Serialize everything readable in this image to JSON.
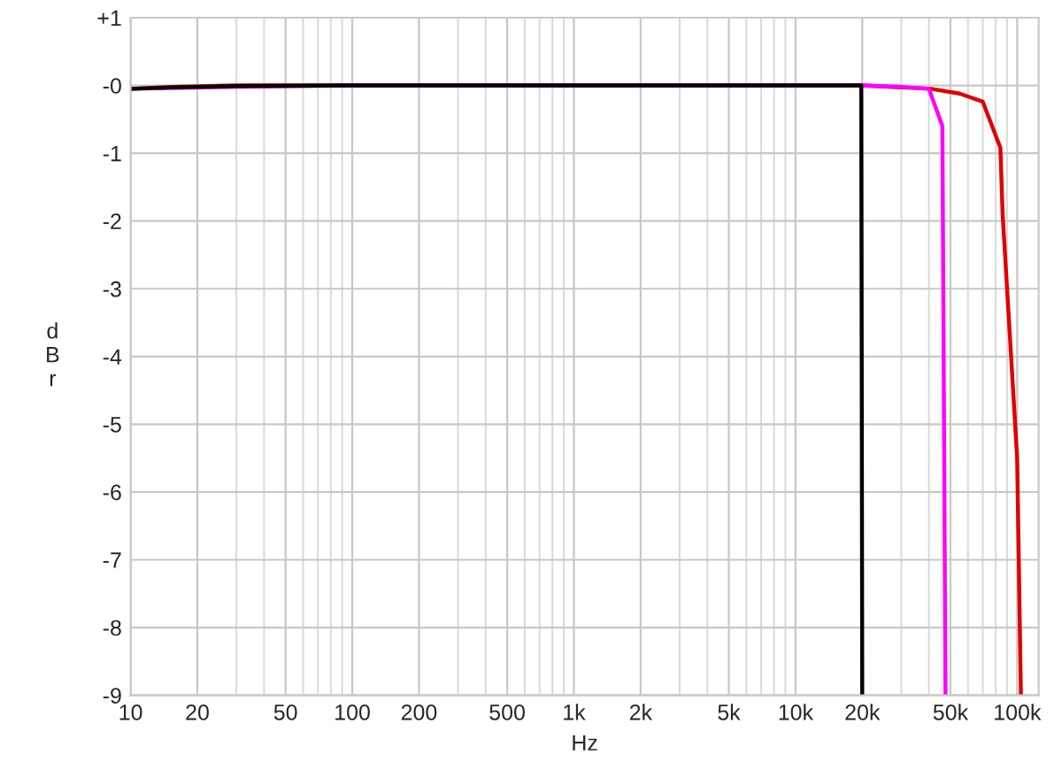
{
  "chart_data": {
    "type": "line",
    "xlabel": "Hz",
    "ylabel": "dBr",
    "log": "x",
    "grid": true,
    "legend": false,
    "marker": "none",
    "line_style": "solid",
    "xlim": [
      10,
      125000
    ],
    "ylim": [
      -9,
      1
    ],
    "xticks": [
      10,
      20,
      50,
      100,
      200,
      500,
      {
        "value": 1000,
        "label": "1k"
      },
      {
        "value": 2000,
        "label": "2k"
      },
      {
        "value": 5000,
        "label": "5k"
      },
      {
        "value": 10000,
        "label": "10k"
      },
      {
        "value": 20000,
        "label": "20k"
      },
      {
        "value": 50000,
        "label": "50k"
      },
      {
        "value": 100000,
        "label": "100k"
      }
    ],
    "yticks": [
      {
        "value": 1,
        "label": "+1"
      },
      {
        "value": 0,
        "label": "-0"
      },
      -1,
      -2,
      -3,
      -4,
      -5,
      -6,
      -7,
      -8,
      -9
    ],
    "series": [
      {
        "color": "#e00000",
        "x": [
          10,
          15,
          30,
          100,
          1000,
          10000,
          20000,
          41000,
          55000,
          70000,
          84000,
          86000,
          100000,
          104000
        ],
        "values": [
          -0.05,
          -0.02,
          0,
          0,
          0,
          0,
          0,
          -0.05,
          -0.12,
          -0.24,
          -0.92,
          -1.9,
          -5.5,
          -9
        ]
      },
      {
        "color": "#ff00ff",
        "x": [
          10,
          30,
          100,
          1000,
          10000,
          20000,
          30000,
          40000,
          46000,
          47500
        ],
        "values": [
          -0.05,
          -0.02,
          0,
          0,
          0,
          0,
          -0.02,
          -0.05,
          -0.6,
          -9
        ]
      },
      {
        "color": "#000000",
        "x": [
          10,
          15,
          30,
          100,
          1000,
          10000,
          19800,
          20000
        ],
        "values": [
          -0.05,
          -0.03,
          -0.01,
          0,
          0,
          0,
          0,
          -9
        ]
      }
    ]
  }
}
